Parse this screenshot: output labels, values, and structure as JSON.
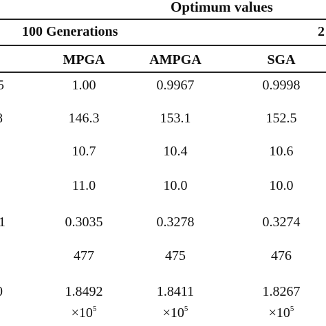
{
  "table": {
    "title": "Optimum values",
    "groups": [
      {
        "label": "100 Generations"
      },
      {
        "label": "2"
      }
    ],
    "columns": [
      "MPGA",
      "AMPGA",
      "SGA"
    ],
    "row_labels": [
      "5",
      "8",
      "",
      "",
      "1",
      "",
      "0"
    ],
    "rows": [
      [
        "1.00",
        "0.9967",
        "0.9998"
      ],
      [
        "146.3",
        "153.1",
        "152.5"
      ],
      [
        "10.7",
        "10.4",
        "10.6"
      ],
      [
        "11.0",
        "10.0",
        "10.0"
      ],
      [
        "0.3035",
        "0.3278",
        "0.3274"
      ],
      [
        "477",
        "475",
        "476"
      ],
      [
        "1.8492",
        "1.8411",
        "1.8267"
      ]
    ],
    "scale_row": {
      "prefix": "×10",
      "exponent": "5"
    }
  }
}
